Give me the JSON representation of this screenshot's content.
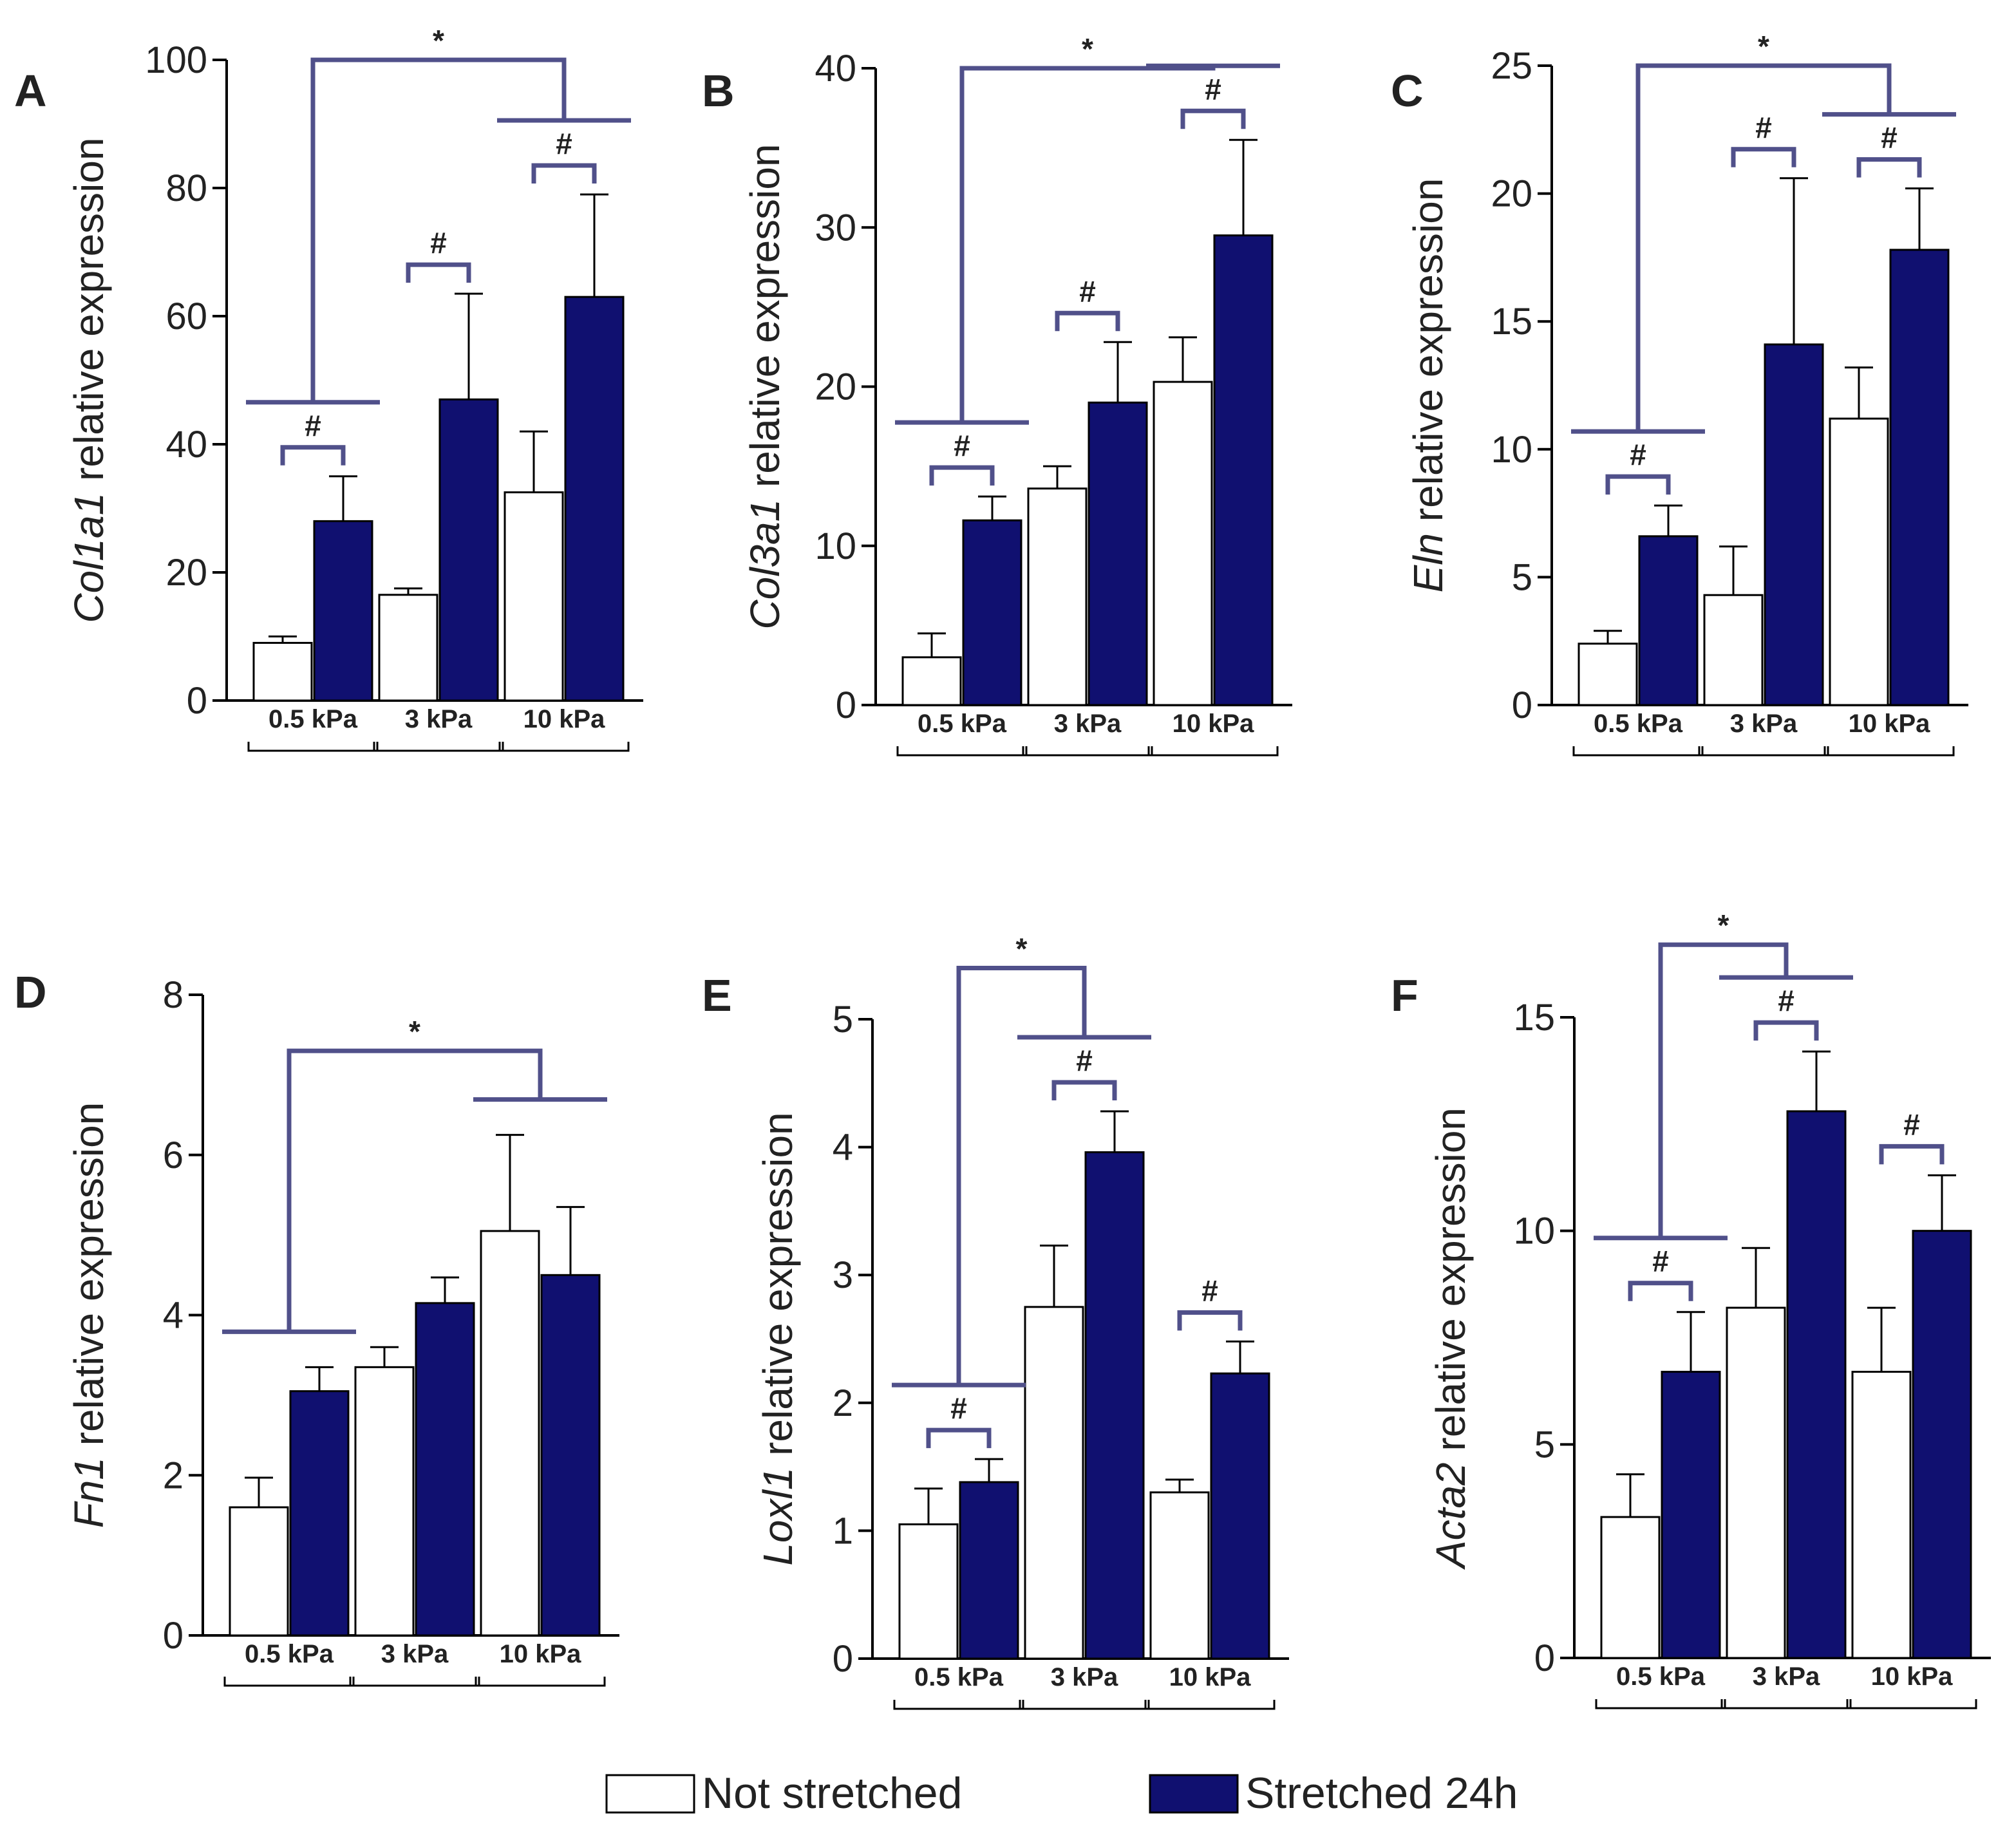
{
  "legend": [
    {
      "label": "Not stretched",
      "color": "#ffffff"
    },
    {
      "label": "Stretched 24h",
      "color": "#101070"
    }
  ],
  "colors": {
    "not_stretched": "#ffffff",
    "stretched": "#101070",
    "bracket": "#50508a",
    "axis": "#000000"
  },
  "chart_data": [
    {
      "type": "bar",
      "panel": "A",
      "gene": "Col1a1",
      "ylabel_suffix": " relative expression",
      "categories": [
        "0.5 kPa",
        "3 kPa",
        "10 kPa"
      ],
      "ylim": [
        0,
        100
      ],
      "yticks": [
        "0",
        "20",
        "40",
        "60",
        "80",
        "100"
      ],
      "series": [
        {
          "name": "Not stretched",
          "values": [
            9,
            16.5,
            32.5
          ],
          "errors": [
            1,
            1,
            9.5
          ]
        },
        {
          "name": "Stretched 24h",
          "values": [
            28,
            47,
            63
          ],
          "errors": [
            7,
            16.5,
            16
          ]
        }
      ],
      "hash_label": "#",
      "hash": [
        0,
        1,
        2
      ],
      "star_label": "*",
      "star": {
        "from": 0,
        "to": 2,
        "level": 100
      }
    },
    {
      "type": "bar",
      "panel": "B",
      "gene": "Col3a1",
      "ylabel_suffix": " relative expression",
      "categories": [
        "0.5 kPa",
        "3 kPa",
        "10 kPa"
      ],
      "ylim": [
        0,
        40
      ],
      "yticks": [
        "0",
        "10",
        "20",
        "30",
        "40"
      ],
      "series": [
        {
          "name": "Not stretched",
          "values": [
            3,
            13.6,
            20.3
          ],
          "errors": [
            1.5,
            1.4,
            2.8
          ]
        },
        {
          "name": "Stretched 24h",
          "values": [
            11.6,
            19,
            29.5
          ],
          "errors": [
            1.5,
            3.8,
            6
          ]
        }
      ],
      "hash_label": "#",
      "hash": [
        0,
        1,
        2
      ],
      "star_label": "*",
      "star": {
        "from": 0,
        "to": 2,
        "level": 40
      }
    },
    {
      "type": "bar",
      "panel": "C",
      "gene": "Eln",
      "ylabel_suffix": " relative expression",
      "categories": [
        "0.5 kPa",
        "3 kPa",
        "10 kPa"
      ],
      "ylim": [
        0,
        25
      ],
      "yticks": [
        "0",
        "5",
        "10",
        "15",
        "20",
        "25"
      ],
      "series": [
        {
          "name": "Not stretched",
          "values": [
            2.4,
            4.3,
            11.2
          ],
          "errors": [
            0.5,
            1.9,
            2
          ]
        },
        {
          "name": "Stretched 24h",
          "values": [
            6.6,
            14.1,
            17.8
          ],
          "errors": [
            1.2,
            6.5,
            2.4
          ]
        }
      ],
      "hash_label": "#",
      "hash": [
        0,
        1,
        2
      ],
      "star_label": "*",
      "star": {
        "from": 0,
        "to": 2,
        "level": 25
      }
    },
    {
      "type": "bar",
      "panel": "D",
      "gene": "Fn1",
      "ylabel_suffix": " relative expression",
      "categories": [
        "0.5 kPa",
        "3 kPa",
        "10 kPa"
      ],
      "ylim": [
        0,
        8
      ],
      "yticks": [
        "0",
        "2",
        "4",
        "6",
        "8"
      ],
      "series": [
        {
          "name": "Not stretched",
          "values": [
            1.6,
            3.35,
            5.05
          ],
          "errors": [
            0.37,
            0.25,
            1.2
          ]
        },
        {
          "name": "Stretched 24h",
          "values": [
            3.05,
            4.15,
            4.5
          ],
          "errors": [
            0.3,
            0.32,
            0.85
          ]
        }
      ],
      "hash_label": "#",
      "hash": [],
      "star_label": "*",
      "star": {
        "from": 0,
        "to": 2,
        "level": 7.3
      }
    },
    {
      "type": "bar",
      "panel": "E",
      "gene": "Loxl1",
      "ylabel_suffix": " relative expression",
      "categories": [
        "0.5 kPa",
        "3 kPa",
        "10 kPa"
      ],
      "ylim": [
        0,
        5
      ],
      "yticks": [
        "0",
        "1",
        "2",
        "3",
        "4",
        "5"
      ],
      "series": [
        {
          "name": "Not stretched",
          "values": [
            1.05,
            2.75,
            1.3
          ],
          "errors": [
            0.28,
            0.48,
            0.1
          ]
        },
        {
          "name": "Stretched 24h",
          "values": [
            1.38,
            3.96,
            2.23
          ],
          "errors": [
            0.18,
            0.32,
            0.25
          ]
        }
      ],
      "hash_label": "#",
      "hash": [
        0,
        1,
        2
      ],
      "star_label": "*",
      "star": {
        "from": 0,
        "to": 1,
        "level": 5.4
      }
    },
    {
      "type": "bar",
      "panel": "F",
      "gene": "Acta2",
      "ylabel_suffix": " relative expression",
      "categories": [
        "0.5 kPa",
        "3 kPa",
        "10 kPa"
      ],
      "ylim": [
        0,
        15
      ],
      "yticks": [
        "0",
        "5",
        "10",
        "15"
      ],
      "series": [
        {
          "name": "Not stretched",
          "values": [
            3.3,
            8.2,
            6.7
          ],
          "errors": [
            1,
            1.4,
            1.5
          ]
        },
        {
          "name": "Stretched 24h",
          "values": [
            6.7,
            12.8,
            10
          ],
          "errors": [
            1.4,
            1.4,
            1.3
          ]
        }
      ],
      "hash_label": "#",
      "hash": [
        0,
        1,
        2
      ],
      "star_label": "*",
      "star": {
        "from": 0,
        "to": 1,
        "level": 16.7
      }
    }
  ]
}
